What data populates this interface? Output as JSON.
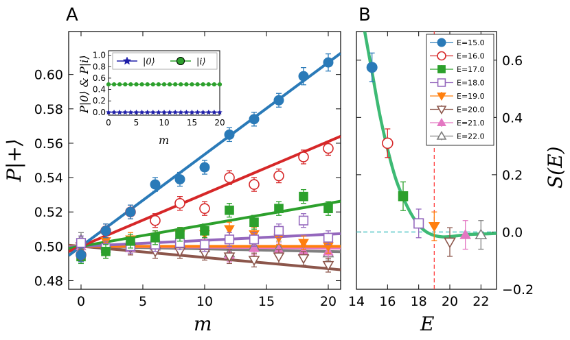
{
  "chart_data": [
    {
      "panel": "A",
      "type": "scatter",
      "panel_label": "A",
      "xlabel": "m",
      "ylabel": "P|+⟩",
      "xlim": [
        -1,
        21
      ],
      "ylim": [
        0.475,
        0.625
      ],
      "xticks": [
        0,
        5,
        10,
        15,
        20
      ],
      "yticks": [
        0.48,
        0.5,
        0.52,
        0.54,
        0.56,
        0.58,
        0.6
      ],
      "x": [
        0,
        2,
        4,
        6,
        8,
        10,
        12,
        14,
        16,
        18,
        20
      ],
      "series": [
        {
          "name": "E=15.0",
          "color": "#2a7ab8",
          "marker": "circle-filled",
          "slope": 0.00535,
          "values": [
            0.495,
            0.509,
            0.52,
            0.536,
            0.539,
            0.546,
            0.565,
            0.574,
            0.585,
            0.599,
            0.607
          ],
          "err": [
            0.004,
            0.004,
            0.004,
            0.004,
            0.004,
            0.004,
            0.004,
            0.004,
            0.004,
            0.005,
            0.005
          ]
        },
        {
          "name": "E=16.0",
          "color": "#d62728",
          "marker": "circle-open",
          "slope": 0.00305,
          "values": [
            0.495,
            0.509,
            0.52,
            0.515,
            0.525,
            0.522,
            0.54,
            0.536,
            0.541,
            0.552,
            0.557
          ],
          "err": [
            0.004,
            0.004,
            0.004,
            0.004,
            0.004,
            0.004,
            0.004,
            0.004,
            0.004,
            0.004,
            0.004
          ]
        },
        {
          "name": "E=17.0",
          "color": "#2ca02c",
          "marker": "square-filled",
          "slope": 0.00125,
          "values": [
            0.494,
            0.497,
            0.503,
            0.505,
            0.507,
            0.509,
            0.521,
            0.514,
            0.522,
            0.529,
            0.522
          ],
          "err": [
            0.004,
            0.004,
            0.004,
            0.004,
            0.004,
            0.004,
            0.004,
            0.004,
            0.004,
            0.004,
            0.004
          ]
        },
        {
          "name": "E=18.0",
          "color": "#9467bd",
          "marker": "square-open",
          "slope": 0.00035,
          "values": [
            0.502,
            0.499,
            0.5,
            0.501,
            0.502,
            0.501,
            0.504,
            0.504,
            0.509,
            0.515,
            0.505
          ],
          "err": [
            0.004,
            0.004,
            0.004,
            0.004,
            0.004,
            0.004,
            0.004,
            0.004,
            0.004,
            0.004,
            0.004
          ]
        },
        {
          "name": "E=19.0",
          "color": "#ff7f0e",
          "marker": "tri-down-filled",
          "slope": 0.0,
          "values": [
            0.5,
            0.503,
            0.504,
            0.505,
            0.507,
            0.507,
            0.51,
            0.507,
            0.505,
            0.502,
            0.5
          ],
          "err": [
            0.004,
            0.004,
            0.004,
            0.004,
            0.004,
            0.004,
            0.004,
            0.004,
            0.004,
            0.004,
            0.004
          ]
        },
        {
          "name": "E=20.0",
          "color": "#8c564b",
          "marker": "tri-down-open",
          "slope": -0.00065,
          "values": [
            0.5,
            0.497,
            0.499,
            0.497,
            0.497,
            0.496,
            0.494,
            0.492,
            0.494,
            0.493,
            0.489
          ],
          "err": [
            0.004,
            0.004,
            0.004,
            0.004,
            0.004,
            0.004,
            0.004,
            0.004,
            0.004,
            0.004,
            0.004
          ]
        },
        {
          "name": "E=21.0",
          "color": "#e377c2",
          "marker": "tri-up-filled",
          "slope": -5e-05,
          "values": [
            0.5,
            0.5,
            0.499,
            0.5,
            0.5,
            0.5,
            0.495,
            0.499,
            0.498,
            0.497,
            0.497
          ],
          "err": [
            0.004,
            0.004,
            0.004,
            0.004,
            0.004,
            0.004,
            0.004,
            0.004,
            0.004,
            0.004,
            0.004
          ]
        },
        {
          "name": "E=22.0",
          "color": "#7f7f7f",
          "marker": "tri-up-open",
          "slope": -0.00015,
          "values": [
            0.504,
            0.501,
            0.499,
            0.5,
            0.501,
            0.499,
            0.496,
            0.5,
            0.499,
            0.497,
            0.496
          ],
          "err": [
            0.004,
            0.004,
            0.004,
            0.004,
            0.004,
            0.004,
            0.004,
            0.004,
            0.004,
            0.004,
            0.004
          ]
        }
      ],
      "inset": {
        "type": "line",
        "xlabel": "m",
        "ylabel": "P|0⟩ & P|i⟩",
        "xlim": [
          0,
          20
        ],
        "ylim": [
          -0.05,
          1.08
        ],
        "xticks": [
          0,
          5,
          10,
          15,
          20
        ],
        "yticks": [
          "0.0",
          "0.2",
          "0.4",
          "0.6",
          "0.8",
          "1.0"
        ],
        "x": [
          0,
          1,
          2,
          3,
          4,
          5,
          6,
          7,
          8,
          9,
          10,
          11,
          12,
          13,
          14,
          15,
          16,
          17,
          18,
          19,
          20
        ],
        "series": [
          {
            "name": "|0⟩",
            "color": "#1f1fa8",
            "marker": "star",
            "values": [
              0.0,
              0.0,
              0.0,
              0.0,
              0.0,
              0.0,
              0.0,
              0.0,
              0.0,
              0.0,
              0.0,
              0.0,
              0.0,
              0.0,
              0.0,
              0.0,
              0.0,
              0.0,
              0.0,
              0.0,
              0.0
            ]
          },
          {
            "name": "|i⟩",
            "color": "#2ca02c",
            "marker": "circle-filled",
            "values": [
              0.49,
              0.49,
              0.49,
              0.49,
              0.49,
              0.49,
              0.49,
              0.49,
              0.49,
              0.49,
              0.49,
              0.49,
              0.49,
              0.49,
              0.49,
              0.49,
              0.49,
              0.49,
              0.49,
              0.49,
              0.49
            ]
          }
        ]
      }
    },
    {
      "panel": "B",
      "type": "scatter",
      "panel_label": "B",
      "xlabel": "E",
      "ylabel": "S(E)",
      "xlim": [
        14,
        23
      ],
      "ylim": [
        -0.2,
        0.7
      ],
      "xticks": [
        14,
        16,
        18,
        20,
        22
      ],
      "yticks": [
        "−0.2",
        "0.0",
        "0.2",
        "0.4",
        "0.6"
      ],
      "points": [
        {
          "label": "E=15.0",
          "E": 15,
          "S": 0.575,
          "err": 0.05,
          "color": "#2a7ab8",
          "marker": "circle-filled"
        },
        {
          "label": "E=16.0",
          "E": 16,
          "S": 0.31,
          "err": 0.05,
          "color": "#d62728",
          "marker": "circle-open"
        },
        {
          "label": "E=17.0",
          "E": 17,
          "S": 0.125,
          "err": 0.05,
          "color": "#2ca02c",
          "marker": "square-filled"
        },
        {
          "label": "E=18.0",
          "E": 18,
          "S": 0.03,
          "err": 0.05,
          "color": "#9467bd",
          "marker": "square-open"
        },
        {
          "label": "E=19.0",
          "E": 19,
          "S": 0.02,
          "err": 0.05,
          "color": "#ff7f0e",
          "marker": "tri-down-filled"
        },
        {
          "label": "E=20.0",
          "E": 20,
          "S": -0.035,
          "err": 0.05,
          "color": "#8c564b",
          "marker": "tri-down-open"
        },
        {
          "label": "E=21.0",
          "E": 21,
          "S": -0.01,
          "err": 0.05,
          "color": "#e377c2",
          "marker": "tri-up-filled"
        },
        {
          "label": "E=22.0",
          "E": 22,
          "S": -0.01,
          "err": 0.05,
          "color": "#7f7f7f",
          "marker": "tri-up-open"
        }
      ],
      "fit_curve": {
        "color": "#3dba74",
        "E": [
          14.5,
          15,
          15.5,
          16,
          16.5,
          17,
          17.5,
          18,
          18.5,
          19,
          19.5,
          20,
          20.5,
          21,
          21.5,
          22,
          22.5,
          23
        ],
        "S": [
          0.71,
          0.56,
          0.41,
          0.29,
          0.19,
          0.12,
          0.065,
          0.025,
          0.0,
          -0.012,
          -0.017,
          -0.016,
          -0.013,
          -0.01,
          -0.008,
          -0.007,
          -0.006,
          -0.005
        ]
      },
      "vline": {
        "E": 19,
        "color": "#ff4040"
      },
      "hline": {
        "S": 0,
        "color": "#40c0c0"
      },
      "legend_position": "top-right"
    }
  ]
}
